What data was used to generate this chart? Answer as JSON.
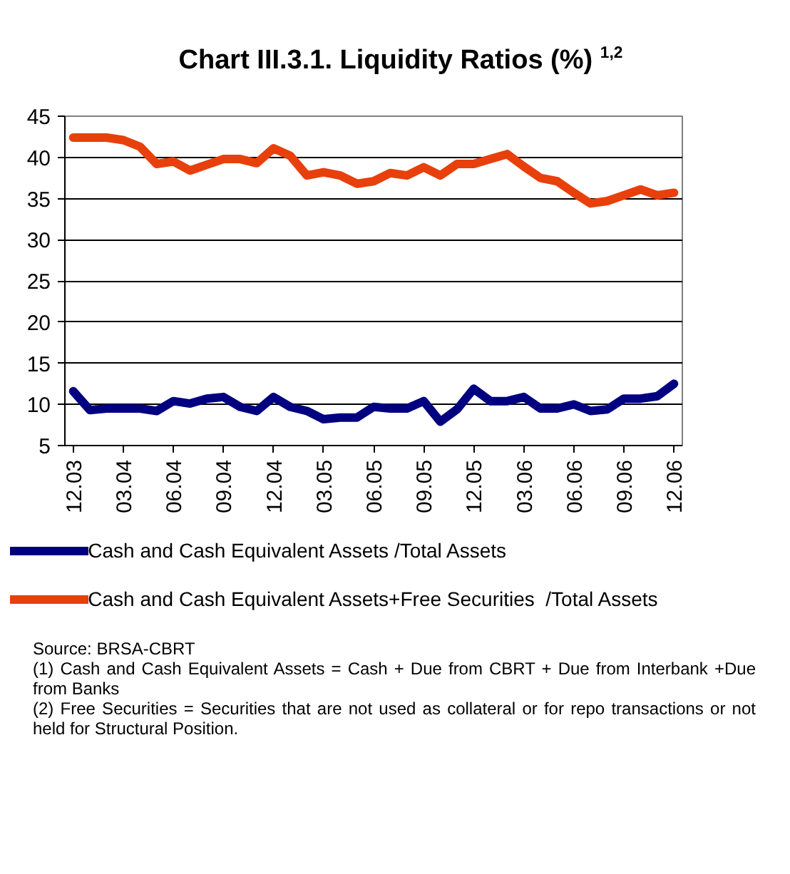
{
  "chart_data": {
    "type": "line",
    "title": "Chart III.3.1. Liquidity Ratios (%) $^{1,2}$",
    "categories": [
      "12.03",
      null,
      null,
      "03.04",
      null,
      null,
      "06.04",
      null,
      null,
      "09.04",
      null,
      null,
      "12.04",
      null,
      null,
      "03.05",
      null,
      null,
      "06.05",
      null,
      null,
      "09.05",
      null,
      null,
      "12.05",
      null,
      null,
      "03.06",
      null,
      null,
      "06.06",
      null,
      null,
      "09.06",
      null,
      null,
      "12.06"
    ],
    "series": [
      {
        "name": "Cash and Cash Equivalent Assets /Total Assets",
        "color": "#000080",
        "values": [
          11.6,
          9.3,
          9.5,
          9.5,
          9.5,
          9.2,
          10.4,
          10.1,
          10.7,
          10.9,
          9.7,
          9.2,
          10.9,
          9.7,
          9.2,
          8.2,
          8.4,
          8.4,
          9.7,
          9.5,
          9.5,
          10.4,
          7.9,
          9.4,
          11.9,
          10.4,
          10.4,
          10.9,
          9.5,
          9.5,
          10.0,
          9.2,
          9.4,
          10.7,
          10.7,
          11.0,
          12.5
        ]
      },
      {
        "name": "Cash and Cash Equivalent Assets+Free Securities  /Total Assets",
        "color": "#e8400c",
        "values": [
          42.4,
          42.4,
          42.4,
          42.1,
          41.3,
          39.2,
          39.5,
          38.4,
          39.1,
          39.8,
          39.8,
          39.3,
          41.1,
          40.2,
          37.8,
          38.2,
          37.8,
          36.8,
          37.1,
          38.1,
          37.8,
          38.8,
          37.8,
          39.2,
          39.2,
          39.8,
          40.4,
          38.9,
          37.5,
          37.1,
          35.7,
          34.4,
          34.7,
          35.4,
          36.1,
          35.4,
          35.7
        ]
      }
    ],
    "ylim": [
      5,
      45
    ],
    "yticks": [
      5,
      10,
      15,
      20,
      25,
      30,
      35,
      40,
      45
    ],
    "grid": "y",
    "legend": "bottom",
    "line_style": "solid",
    "annotations": [
      "Source: BRSA-CBRT",
      "(1) Cash and Cash Equivalent Assets = Cash + Due from CBRT + Due from Interbank +Due from Banks",
      "(2) Free Securities = Securities that are not used as collateral or for repo transactions or not held for Structural Position."
    ]
  }
}
